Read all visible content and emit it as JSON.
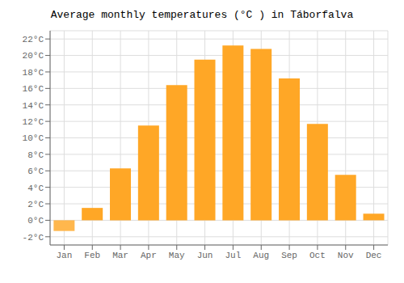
{
  "chart_data": {
    "type": "bar",
    "title": "Average monthly temperatures (°C ) in Táborfalva",
    "categories": [
      "Jan",
      "Feb",
      "Mar",
      "Apr",
      "May",
      "Jun",
      "Jul",
      "Aug",
      "Sep",
      "Oct",
      "Nov",
      "Dec"
    ],
    "values": [
      -1.3,
      1.5,
      6.3,
      11.5,
      16.4,
      19.5,
      21.2,
      20.8,
      17.2,
      11.7,
      5.5,
      0.8
    ],
    "colors": [
      "#FFB74D",
      "#FFA726",
      "#FFA726",
      "#FFA726",
      "#FFA726",
      "#FFA726",
      "#FFA726",
      "#FFA726",
      "#FFA726",
      "#FFA726",
      "#FFA726",
      "#FFA726"
    ],
    "ylim": [
      -3,
      23
    ],
    "yticks": [
      {
        "value": -2,
        "label": "-2°C"
      },
      {
        "value": 0,
        "label": "0°C"
      },
      {
        "value": 2,
        "label": "2°C"
      },
      {
        "value": 4,
        "label": "4°C"
      },
      {
        "value": 6,
        "label": "6°C"
      },
      {
        "value": 8,
        "label": "8°C"
      },
      {
        "value": 10,
        "label": "10°C"
      },
      {
        "value": 12,
        "label": "12°C"
      },
      {
        "value": 14,
        "label": "14°C"
      },
      {
        "value": 16,
        "label": "16°C"
      },
      {
        "value": 18,
        "label": "18°C"
      },
      {
        "value": 20,
        "label": "20°C"
      },
      {
        "value": 22,
        "label": "22°C"
      }
    ],
    "grid": true
  }
}
